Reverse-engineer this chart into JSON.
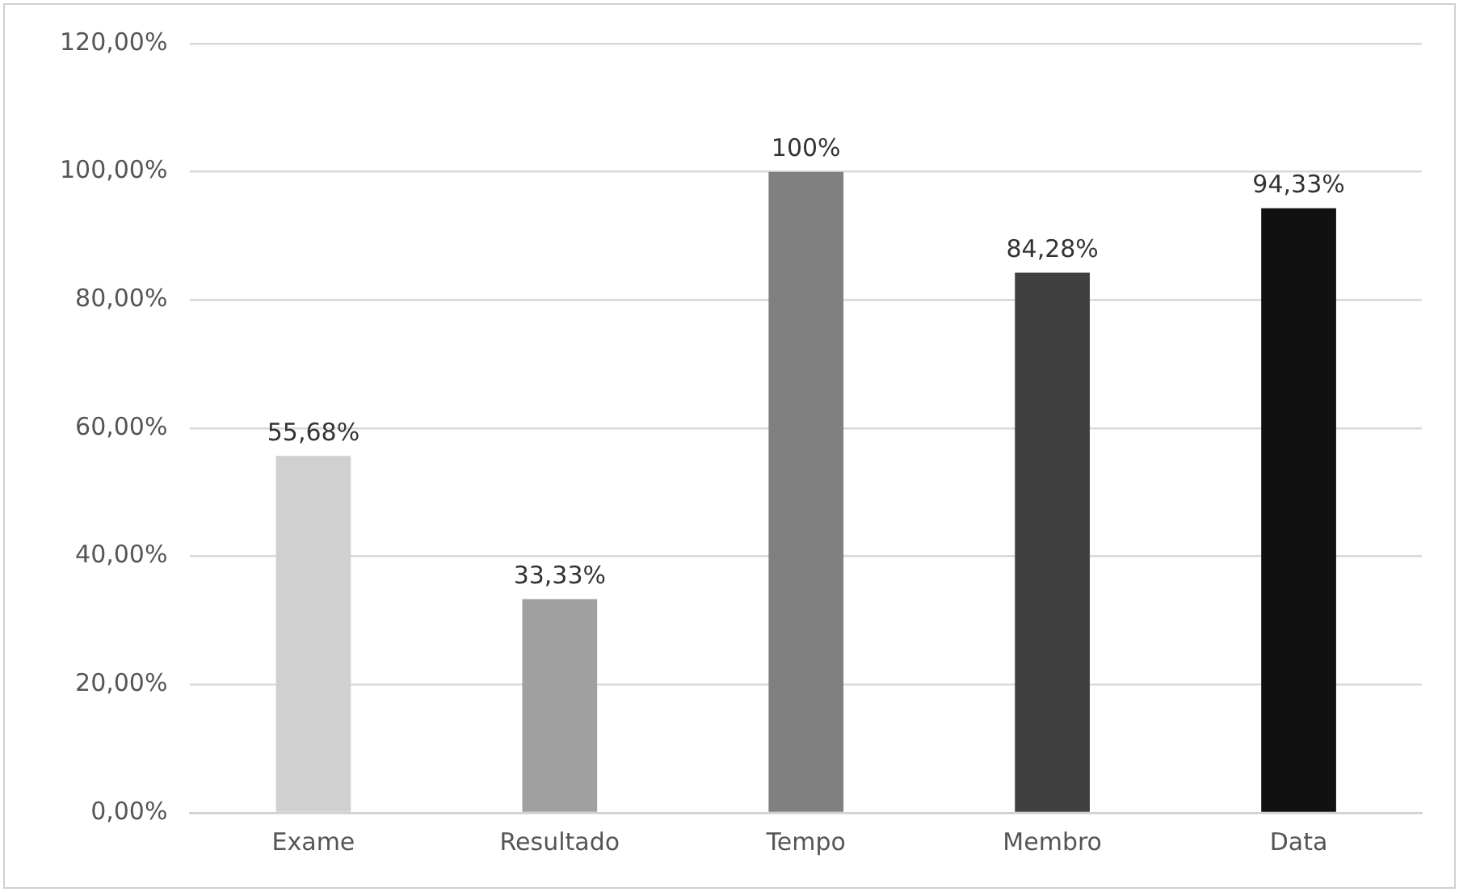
{
  "chart_data": {
    "type": "bar",
    "categories": [
      "Exame",
      "Resultado",
      "Tempo",
      "Membro",
      "Data"
    ],
    "values": [
      55.68,
      33.33,
      100,
      84.28,
      94.33
    ],
    "colors": [
      "#d0d0d0",
      "#a0a0a0",
      "#808080",
      "#404040",
      "#111111"
    ],
    "value_labels": [
      "55,68%",
      "33,33%",
      "100%",
      "84,28%",
      "94,33%"
    ],
    "ylim": [
      0,
      120
    ],
    "yticks": [
      {
        "value": 0,
        "label": "0,00%"
      },
      {
        "value": 20,
        "label": "20,00%"
      },
      {
        "value": 40,
        "label": "40,00%"
      },
      {
        "value": 60,
        "label": "60,00%"
      },
      {
        "value": 80,
        "label": "80,00%"
      },
      {
        "value": 100,
        "label": "100,00%"
      },
      {
        "value": 120,
        "label": "120,00%"
      }
    ],
    "grid": "y",
    "legend": false
  }
}
